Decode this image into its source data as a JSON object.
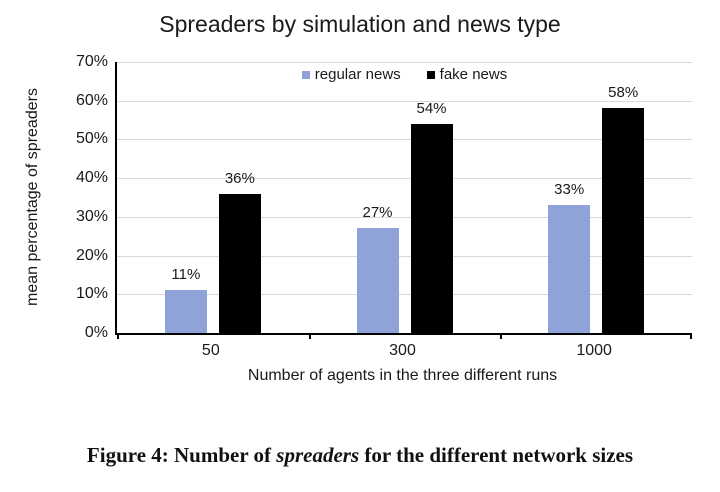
{
  "chart_data": {
    "type": "bar",
    "title": "Spreaders by simulation and news type",
    "xlabel": "Number of agents in the three different runs",
    "ylabel": "mean percentage of spreaders",
    "categories": [
      "50",
      "300",
      "1000"
    ],
    "series": [
      {
        "name": "regular news",
        "color": "#8fa3d8",
        "values": [
          11,
          27,
          33
        ],
        "labels": [
          "11%",
          "27%",
          "33%"
        ]
      },
      {
        "name": "fake news",
        "color": "#000000",
        "values": [
          36,
          54,
          58
        ],
        "labels": [
          "36%",
          "54%",
          "58%"
        ]
      }
    ],
    "ylim": [
      0,
      70
    ],
    "ytick_step": 10,
    "yticks": [
      "0%",
      "10%",
      "20%",
      "30%",
      "40%",
      "50%",
      "60%",
      "70%"
    ],
    "grid": true,
    "legend_position": "top-center"
  },
  "colors": {
    "gridline": "#d9d9d9",
    "axis": "#000000",
    "text": "#1a1a1a"
  },
  "caption": {
    "prefix": "Figure 4: Number of ",
    "italic": "spreaders",
    "suffix": " for the different network sizes"
  }
}
